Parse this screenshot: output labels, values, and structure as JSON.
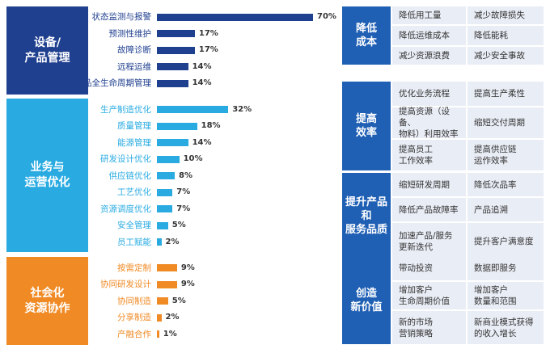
{
  "chart_data": {
    "type": "bar",
    "orientation": "horizontal",
    "groups": [
      {
        "name": "设备/\n产品管理",
        "color": "#1f3f8f",
        "categories": [
          "状态监测与报警",
          "预测性维护",
          "故障诊断",
          "远程运维",
          "产品全生命周期管理"
        ],
        "values": [
          70,
          17,
          17,
          14,
          14
        ],
        "labels": [
          "70%",
          "17%",
          "17%",
          "14%",
          "14%"
        ]
      },
      {
        "name": "业务与\n运营优化",
        "color": "#29abe2",
        "categories": [
          "生产制造优化",
          "质量管理",
          "能源管理",
          "研发设计优化",
          "供应链优化",
          "工艺优化",
          "资源调度优化",
          "安全管理",
          "员工赋能"
        ],
        "values": [
          32,
          18,
          14,
          10,
          8,
          7,
          7,
          5,
          2
        ],
        "labels": [
          "32%",
          "18%",
          "14%",
          "10%",
          "8%",
          "7%",
          "7%",
          "5%",
          "2%"
        ]
      },
      {
        "name": "社会化\n资源协作",
        "color": "#f08a24",
        "categories": [
          "按需定制",
          "协同研发设计",
          "协同制造",
          "分享制造",
          "产融合作"
        ],
        "values": [
          9,
          9,
          5,
          2,
          1
        ],
        "labels": [
          "9%",
          "9%",
          "5%",
          "2%",
          "1%"
        ]
      }
    ],
    "xlim": [
      0,
      70
    ],
    "title": "",
    "xlabel": "",
    "ylabel": ""
  },
  "value_table": {
    "rows": [
      {
        "category": "降低\n成本",
        "cells": [
          "降低用工量",
          "减少故障损失",
          "降低运维成本",
          "降低能耗",
          "减少资源浪费",
          "减少安全事故"
        ]
      },
      {
        "category": "提高\n效率",
        "cells": [
          "优化业务流程",
          "提高生产柔性",
          "提高资源（设备、\n物料）利用效率",
          "缩短交付周期",
          "提高员工\n工作效率",
          "提高供应链\n运作效率"
        ]
      },
      {
        "category": "提升产品\n和\n服务品质",
        "cells": [
          "缩短研发周期",
          "降低次品率",
          "降低产品故障率",
          "产品追溯",
          "加速产品/服务\n更新迭代",
          "提升客户满意度"
        ]
      },
      {
        "category": "创造\n新价值",
        "cells": [
          "带动投资",
          "数据即服务",
          "增加客户\n生命周期价值",
          "增加客户\n数量和范围",
          "新的市场\n营销策略",
          "新商业模式获得\n的收入增长"
        ]
      }
    ]
  }
}
